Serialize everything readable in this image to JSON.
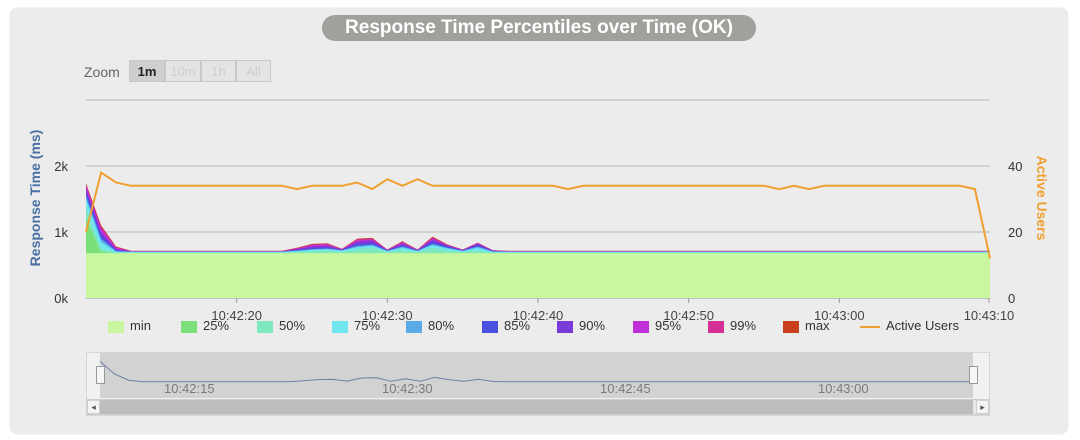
{
  "chart_data": {
    "type": "area",
    "title": "Response Time Percentiles over Time (OK)",
    "ylabel": "Response Time (ms)",
    "y2label": "Active Users",
    "ylim": [
      0,
      3000
    ],
    "y2lim": [
      0,
      60
    ],
    "y_ticks": [
      "0k",
      "1k",
      "2k"
    ],
    "y2_ticks": [
      "0",
      "20",
      "40"
    ],
    "x_ticks": [
      "10:42:20",
      "10:42:30",
      "10:42:40",
      "10:42:50",
      "10:43:00",
      "10:43:10"
    ],
    "zoom": {
      "label": "Zoom",
      "buttons": [
        "1m",
        "10m",
        "1h",
        "All"
      ],
      "selected": "1m"
    },
    "x": [
      0,
      1,
      2,
      3,
      4,
      5,
      6,
      7,
      8,
      9,
      10,
      11,
      12,
      13,
      14,
      15,
      16,
      17,
      18,
      19,
      20,
      21,
      22,
      23,
      24,
      25,
      26,
      27,
      28,
      29,
      30,
      31,
      32,
      33,
      34,
      35,
      36,
      37,
      38,
      39,
      40,
      41,
      42,
      43,
      44,
      45,
      46,
      47,
      48,
      49,
      50,
      51,
      52,
      53,
      54,
      55,
      56,
      57,
      58,
      59,
      60
    ],
    "series": [
      {
        "name": "min",
        "color": "#c9f7a0",
        "values": [
          680,
          680,
          680,
          680,
          680,
          680,
          680,
          680,
          680,
          680,
          680,
          680,
          680,
          680,
          680,
          680,
          680,
          680,
          680,
          680,
          680,
          680,
          680,
          680,
          680,
          680,
          680,
          680,
          680,
          680,
          680,
          680,
          680,
          680,
          680,
          680,
          680,
          680,
          680,
          680,
          680,
          680,
          680,
          680,
          680,
          680,
          680,
          680,
          680,
          680,
          680,
          680,
          680,
          680,
          680,
          680,
          680,
          680,
          680,
          680,
          680
        ]
      },
      {
        "name": "25%",
        "color": "#7ce07a",
        "values": [
          1200,
          700,
          680,
          680,
          680,
          680,
          680,
          680,
          680,
          680,
          680,
          680,
          680,
          680,
          680,
          680,
          680,
          680,
          680,
          680,
          680,
          680,
          680,
          680,
          680,
          680,
          680,
          680,
          680,
          680,
          680,
          680,
          680,
          680,
          680,
          680,
          680,
          680,
          680,
          680,
          680,
          680,
          680,
          680,
          680,
          680,
          680,
          680,
          680,
          680,
          680,
          680,
          680,
          680,
          680,
          680,
          680,
          680,
          680,
          680,
          680
        ]
      },
      {
        "name": "50%",
        "color": "#7ee8bf",
        "values": [
          1350,
          750,
          690,
          690,
          690,
          690,
          690,
          690,
          690,
          690,
          690,
          690,
          690,
          690,
          700,
          710,
          720,
          700,
          740,
          760,
          700,
          730,
          700,
          760,
          720,
          700,
          720,
          690,
          690,
          690,
          690,
          690,
          690,
          690,
          690,
          690,
          690,
          690,
          690,
          690,
          690,
          690,
          690,
          690,
          690,
          690,
          690,
          690,
          690,
          690,
          690,
          690,
          690,
          690,
          690,
          690,
          690,
          690,
          690,
          690,
          690
        ]
      },
      {
        "name": "75%",
        "color": "#70e6ee",
        "values": [
          1500,
          850,
          700,
          700,
          700,
          700,
          700,
          700,
          700,
          700,
          700,
          700,
          700,
          700,
          710,
          730,
          740,
          720,
          770,
          790,
          710,
          760,
          710,
          800,
          750,
          710,
          760,
          700,
          700,
          700,
          700,
          700,
          700,
          700,
          700,
          700,
          700,
          700,
          700,
          700,
          700,
          700,
          700,
          700,
          700,
          700,
          700,
          700,
          700,
          700,
          700,
          700,
          700,
          700,
          700,
          700,
          700,
          700,
          700,
          700,
          700
        ]
      },
      {
        "name": "80%",
        "color": "#5aaae8",
        "values": [
          1550,
          900,
          710,
          700,
          700,
          700,
          700,
          700,
          700,
          700,
          700,
          700,
          700,
          700,
          720,
          740,
          750,
          725,
          790,
          810,
          715,
          780,
          715,
          820,
          760,
          715,
          780,
          705,
          700,
          700,
          700,
          700,
          700,
          700,
          700,
          700,
          700,
          700,
          700,
          700,
          700,
          700,
          700,
          700,
          700,
          700,
          700,
          700,
          700,
          700,
          700,
          700,
          700,
          700,
          700,
          700,
          700,
          700,
          700,
          700,
          700
        ]
      },
      {
        "name": "85%",
        "color": "#4a50e0",
        "values": [
          1600,
          950,
          720,
          700,
          700,
          700,
          700,
          700,
          700,
          700,
          700,
          700,
          700,
          700,
          730,
          750,
          760,
          730,
          810,
          830,
          720,
          800,
          720,
          850,
          780,
          720,
          800,
          710,
          700,
          700,
          700,
          700,
          700,
          700,
          700,
          700,
          700,
          700,
          700,
          700,
          700,
          700,
          700,
          700,
          700,
          700,
          700,
          700,
          700,
          700,
          700,
          700,
          700,
          700,
          700,
          700,
          700,
          700,
          700,
          700,
          700
        ]
      },
      {
        "name": "90%",
        "color": "#7a3ad8",
        "values": [
          1650,
          1000,
          740,
          705,
          705,
          705,
          705,
          705,
          705,
          705,
          705,
          705,
          705,
          705,
          740,
          780,
          790,
          735,
          850,
          870,
          725,
          820,
          725,
          880,
          790,
          725,
          820,
          715,
          705,
          705,
          705,
          705,
          705,
          705,
          705,
          705,
          705,
          705,
          705,
          705,
          705,
          705,
          705,
          705,
          705,
          705,
          705,
          705,
          705,
          705,
          705,
          705,
          705,
          705,
          705,
          705,
          705,
          705,
          705,
          705,
          705
        ]
      },
      {
        "name": "95%",
        "color": "#c030d8",
        "values": [
          1700,
          1050,
          760,
          710,
          710,
          710,
          710,
          710,
          710,
          710,
          710,
          710,
          710,
          710,
          750,
          800,
          810,
          740,
          870,
          890,
          730,
          840,
          730,
          900,
          800,
          730,
          830,
          720,
          710,
          710,
          710,
          710,
          710,
          710,
          710,
          710,
          710,
          710,
          710,
          710,
          710,
          710,
          710,
          710,
          710,
          710,
          710,
          710,
          710,
          710,
          710,
          710,
          710,
          710,
          710,
          710,
          710,
          710,
          710,
          710,
          710
        ]
      },
      {
        "name": "99%",
        "color": "#d43096",
        "values": [
          1720,
          1080,
          770,
          712,
          712,
          712,
          712,
          712,
          712,
          712,
          712,
          712,
          712,
          712,
          755,
          810,
          820,
          742,
          890,
          900,
          732,
          850,
          732,
          920,
          805,
          732,
          835,
          722,
          712,
          712,
          712,
          712,
          712,
          712,
          712,
          712,
          712,
          712,
          712,
          712,
          712,
          712,
          712,
          712,
          712,
          712,
          712,
          712,
          712,
          712,
          712,
          712,
          712,
          712,
          712,
          712,
          712,
          712,
          712,
          712,
          712
        ]
      },
      {
        "name": "max",
        "color": "#c8401e",
        "values": [
          1740,
          1100,
          780,
          715,
          715,
          715,
          715,
          715,
          715,
          715,
          715,
          715,
          715,
          715,
          760,
          820,
          830,
          745,
          900,
          910,
          735,
          860,
          735,
          930,
          810,
          735,
          840,
          725,
          715,
          715,
          715,
          715,
          715,
          715,
          715,
          715,
          715,
          715,
          715,
          715,
          715,
          715,
          715,
          715,
          715,
          715,
          715,
          715,
          715,
          715,
          715,
          715,
          715,
          715,
          715,
          715,
          715,
          715,
          715,
          715,
          715
        ]
      }
    ],
    "active_users": {
      "name": "Active Users",
      "color": "#f0a030",
      "values": [
        20,
        38,
        35,
        34,
        34,
        34,
        34,
        34,
        34,
        34,
        34,
        34,
        34,
        34,
        33,
        34,
        34,
        34,
        35,
        33,
        36,
        34,
        36,
        34,
        34,
        34,
        34,
        34,
        34,
        34,
        34,
        34,
        33,
        34,
        34,
        34,
        34,
        34,
        34,
        34,
        34,
        34,
        34,
        34,
        34,
        34,
        33,
        34,
        33,
        34,
        34,
        34,
        34,
        34,
        34,
        34,
        34,
        34,
        34,
        33,
        12
      ]
    },
    "navigator": {
      "x_ticks": [
        "10:42:15",
        "10:42:30",
        "10:42:45",
        "10:43:00"
      ]
    }
  }
}
